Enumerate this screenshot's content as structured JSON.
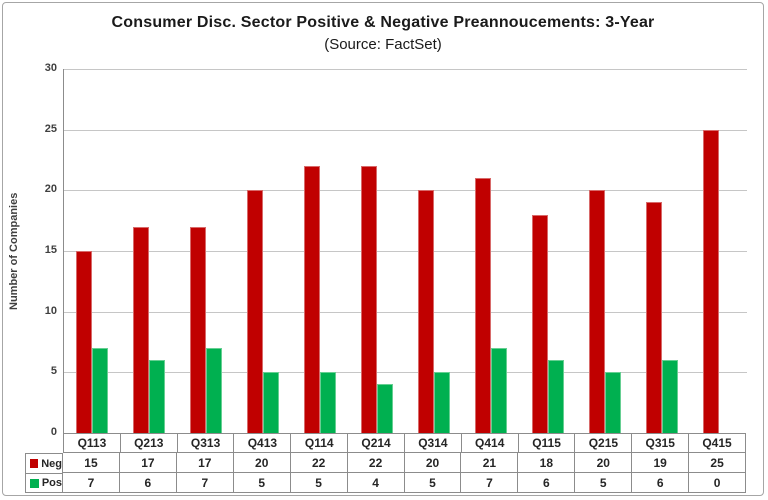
{
  "window": {
    "border_color": "#a6a6a6",
    "background": "#ffffff"
  },
  "chart_data": {
    "type": "bar",
    "title": "Consumer Disc. Sector Positive & Negative Preannoucements: 3-Year",
    "subtitle": "(Source: FactSet)",
    "ylabel": "Number of Companies",
    "xlabel": "",
    "categories": [
      "Q113",
      "Q213",
      "Q313",
      "Q413",
      "Q114",
      "Q214",
      "Q314",
      "Q414",
      "Q115",
      "Q215",
      "Q315",
      "Q415"
    ],
    "series": [
      {
        "name": "Neg",
        "color": "#c00000",
        "values": [
          15,
          17,
          17,
          20,
          22,
          22,
          20,
          21,
          18,
          20,
          19,
          25
        ]
      },
      {
        "name": "Pos",
        "color": "#00b050",
        "values": [
          7,
          6,
          7,
          5,
          5,
          4,
          5,
          7,
          6,
          5,
          6,
          0
        ]
      }
    ],
    "ylim": [
      0,
      30
    ],
    "yticks": [
      0,
      5,
      10,
      15,
      20,
      25,
      30
    ],
    "grid": true,
    "legend_position": "data-table-left",
    "data_table_shown": true
  }
}
